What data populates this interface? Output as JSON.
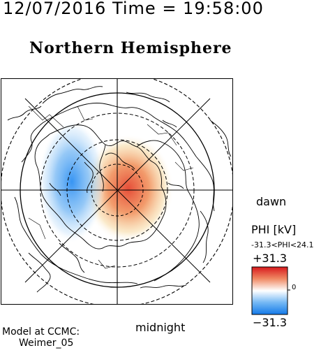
{
  "header": {
    "timestamp": "12/07/2016 Time = 19:58:00",
    "title": "Northern Hemisphere"
  },
  "map": {
    "dawn_label": "dawn",
    "midnight_label": "midnight",
    "colors": {
      "positive": "#e0402a",
      "negative": "#2a8cf0",
      "neutral": "#ffffff"
    }
  },
  "colorbar": {
    "title": "PHI [kV]",
    "range_text": "-31.3<PHI<24.1",
    "max_label": "+31.3",
    "zero_label": "0",
    "min_label": "−31.3"
  },
  "footer": {
    "line1": "Model at CCMC:",
    "line2": "Weimer_05"
  }
}
